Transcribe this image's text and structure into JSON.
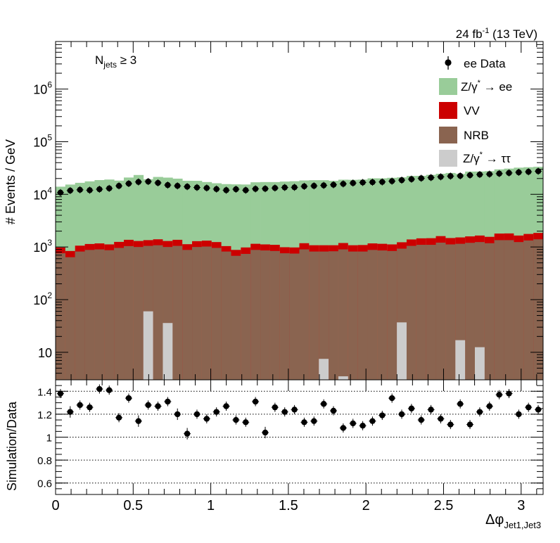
{
  "header": {
    "lumi": "24 fb",
    "lumi_exp": "-1",
    "energy": " (13 TeV)"
  },
  "chart_data": [
    {
      "type": "bar",
      "stacked": true,
      "log_y": true,
      "ylabel": "# Events / GeV",
      "ylim": [
        3,
        8000000
      ],
      "xlim": [
        0,
        3.1416
      ],
      "bins": 50,
      "yticks": [
        {
          "v": 10,
          "base": "10",
          "exp": ""
        },
        {
          "v": 100,
          "base": "10",
          "exp": "2"
        },
        {
          "v": 1000,
          "base": "10",
          "exp": "3"
        },
        {
          "v": 10000,
          "base": "10",
          "exp": "4"
        },
        {
          "v": 100000,
          "base": "10",
          "exp": "5"
        },
        {
          "v": 1000000,
          "base": "10",
          "exp": "6"
        }
      ],
      "annotation": {
        "main": "N",
        "sub": "jets",
        "tail": " ≥ 3"
      },
      "legend": {
        "placement": "top-right",
        "entries": [
          {
            "key": "data",
            "text": "ee Data"
          },
          {
            "key": "dy_ee",
            "text_pre": "Z/γ",
            "text_sup": "*",
            "text_post": " → ee"
          },
          {
            "key": "vv",
            "text": "VV"
          },
          {
            "key": "nrb",
            "text": "NRB"
          },
          {
            "key": "dy_tt",
            "text_pre": "Z/γ",
            "text_sup": "*",
            "text_post": " → ττ"
          }
        ]
      },
      "colors": {
        "dy_ee": "#99cc99",
        "vv": "#cc0000",
        "nrb": "#8a6450",
        "dy_tt": "#cccccc",
        "data": "#000000"
      },
      "series": {
        "nrb": [
          760,
          640,
          820,
          880,
          900,
          870,
          960,
          1040,
          1000,
          1050,
          1080,
          1000,
          1050,
          880,
          1000,
          1020,
          960,
          820,
          680,
          740,
          880,
          860,
          840,
          760,
          750,
          900,
          820,
          820,
          830,
          900,
          820,
          820,
          880,
          860,
          840,
          930,
          1050,
          1100,
          1100,
          1210,
          1120,
          1150,
          1200,
          1240,
          1180,
          1350,
          1350,
          1240,
          1330,
          1400
        ],
        "vv": [
          220,
          200,
          240,
          260,
          270,
          250,
          290,
          330,
          300,
          300,
          320,
          300,
          320,
          250,
          290,
          300,
          280,
          220,
          200,
          240,
          270,
          260,
          260,
          230,
          230,
          280,
          260,
          260,
          250,
          290,
          260,
          270,
          290,
          290,
          280,
          300,
          340,
          360,
          370,
          400,
          360,
          370,
          390,
          410,
          380,
          450,
          460,
          410,
          440,
          450
        ],
        "dy_ee": [
          13000,
          14500,
          15500,
          16500,
          17500,
          18000,
          17000,
          19500,
          22000,
          18000,
          20000,
          19500,
          18500,
          17000,
          16800,
          15800,
          15000,
          14600,
          14600,
          14400,
          15800,
          16000,
          16000,
          16500,
          16800,
          17200,
          17500,
          17500,
          17000,
          17800,
          17800,
          18000,
          19000,
          19000,
          19500,
          19800,
          21000,
          21000,
          22000,
          23000,
          24000,
          23000,
          25500,
          25500,
          26000,
          28000,
          29000,
          30500,
          31000,
          31500
        ],
        "dy_tt": [
          0,
          0,
          0,
          0,
          0,
          0,
          0,
          0,
          0,
          60,
          0,
          36,
          0,
          0,
          0,
          0,
          0,
          0,
          0,
          0,
          0,
          0,
          0,
          0,
          0,
          0,
          0,
          7.5,
          0,
          3.5,
          0,
          0,
          0,
          0,
          0,
          37,
          0,
          0,
          0,
          0,
          0,
          17,
          0,
          12.5,
          0,
          0,
          0,
          0,
          0,
          0
        ],
        "data": [
          10800,
          11800,
          12200,
          12000,
          12500,
          13000,
          14500,
          16000,
          17200,
          17500,
          16500,
          15000,
          14500,
          14000,
          13500,
          13200,
          12600,
          12000,
          12500,
          12000,
          12700,
          12800,
          13200,
          13500,
          13600,
          14200,
          14500,
          14800,
          15200,
          15800,
          16400,
          16800,
          17000,
          17200,
          17800,
          18600,
          19400,
          20200,
          20800,
          21500,
          22200,
          22400,
          23100,
          23800,
          24200,
          24800,
          25500,
          26200,
          26800,
          27500
        ]
      }
    },
    {
      "type": "scatter",
      "ylabel": "Simulation/Data",
      "xlabel_main": "Δφ",
      "xlabel_sub": "Jet1,Jet3",
      "xlim": [
        0,
        3.1416
      ],
      "ylim": [
        0.5,
        1.5
      ],
      "yticks": [
        0.6,
        0.8,
        1,
        1.2,
        1.4
      ],
      "ytick_labels": [
        "0.6",
        "0.8",
        "1",
        "1.2",
        "1.4"
      ],
      "dotted_lines": [
        0.6,
        0.8,
        1,
        1.2,
        1.4
      ],
      "xticks": [
        0,
        0.5,
        1,
        1.5,
        2,
        2.5,
        3
      ],
      "xtick_labels": [
        "0",
        "0.5",
        "1",
        "1.5",
        "2",
        "2.5",
        "3"
      ],
      "values": [
        1.38,
        1.22,
        1.28,
        1.26,
        1.42,
        1.41,
        1.17,
        1.34,
        1.14,
        1.28,
        1.27,
        1.31,
        1.2,
        1.03,
        1.2,
        1.16,
        1.22,
        1.27,
        1.15,
        1.13,
        1.31,
        1.04,
        1.26,
        1.22,
        1.24,
        1.13,
        1.14,
        1.29,
        1.23,
        1.08,
        1.12,
        1.1,
        1.14,
        1.19,
        1.34,
        1.2,
        1.25,
        1.15,
        1.24,
        1.16,
        1.11,
        1.29,
        1.11,
        1.22,
        1.27,
        1.37,
        1.38,
        1.2,
        1.26,
        1.24
      ],
      "errors": [
        0.04,
        0.05,
        0.04,
        0.04,
        0.04,
        0.04,
        0.04,
        0.04,
        0.05,
        0.04,
        0.04,
        0.04,
        0.05,
        0.05,
        0.04,
        0.04,
        0.04,
        0.04,
        0.04,
        0.04,
        0.04,
        0.05,
        0.04,
        0.04,
        0.04,
        0.04,
        0.04,
        0.04,
        0.04,
        0.04,
        0.04,
        0.04,
        0.04,
        0.04,
        0.04,
        0.04,
        0.04,
        0.04,
        0.04,
        0.04,
        0.04,
        0.04,
        0.04,
        0.04,
        0.04,
        0.04,
        0.04,
        0.04,
        0.04,
        0.04
      ]
    }
  ]
}
